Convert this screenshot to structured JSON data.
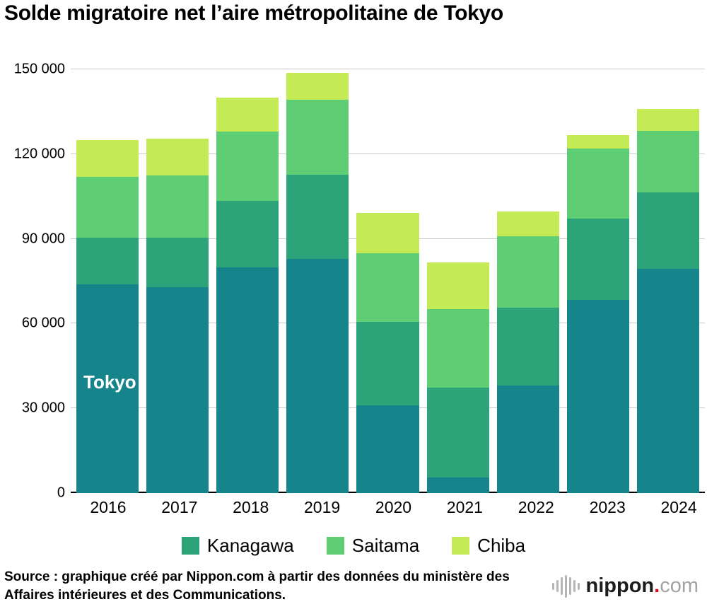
{
  "chart_data": {
    "type": "bar",
    "stacked": true,
    "title": "Solde migratoire net l’aire métropolitaine de Tokyo",
    "categories": [
      "2016",
      "2017",
      "2018",
      "2019",
      "2020",
      "2021",
      "2022",
      "2023",
      "2024"
    ],
    "series": [
      {
        "name": "Tokyo",
        "color": "#15858b",
        "values": [
          74000,
          73000,
          80000,
          83000,
          31100,
          5400,
          38000,
          68300,
          79300
        ]
      },
      {
        "name": "Kanagawa",
        "color": "#2ca379",
        "values": [
          16500,
          17500,
          23500,
          29600,
          29600,
          31800,
          27600,
          28900,
          27200
        ]
      },
      {
        "name": "Saitama",
        "color": "#5ecd73",
        "values": [
          21500,
          22000,
          24500,
          26700,
          24300,
          27800,
          25400,
          24700,
          21700
        ]
      },
      {
        "name": "Chiba",
        "color": "#c4ea55",
        "values": [
          13000,
          13000,
          12000,
          9500,
          14300,
          16600,
          8600,
          4700,
          7800
        ]
      }
    ],
    "ylim": [
      0,
      150000
    ],
    "ytick_values": [
      0,
      30000,
      60000,
      90000,
      120000,
      150000
    ],
    "ytick_labels": [
      "0",
      "30 000",
      "60 000",
      "90 000",
      "120 000",
      "150 000"
    ],
    "grid": true,
    "legend": [
      "Kanagawa",
      "Saitama",
      "Chiba"
    ],
    "legend_position": "bottom",
    "inner_label": {
      "text": "Tokyo",
      "bar_index": 0
    }
  },
  "footer": {
    "source_line": "Source : graphique créé par Nippon.com à partir des données du ministère des Affaires intérieures et des Communications.",
    "logo": {
      "name": "nippon",
      "dot": ".",
      "tld": "com"
    }
  }
}
